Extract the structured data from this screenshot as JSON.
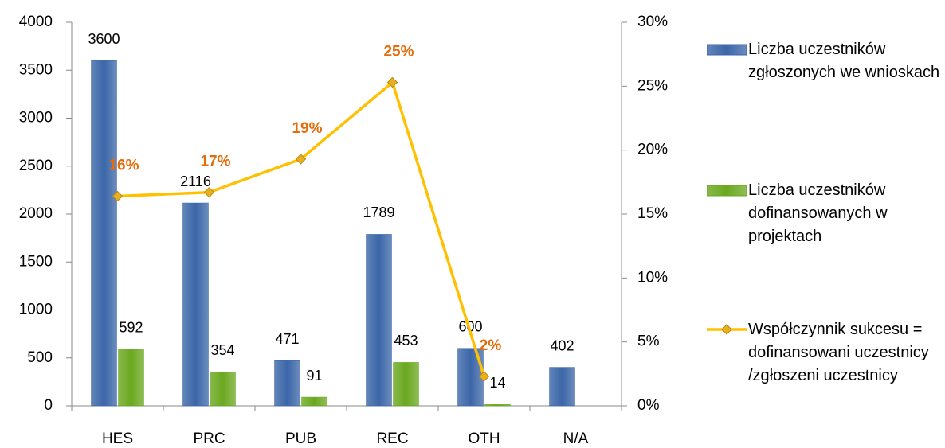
{
  "chart_data": {
    "type": "bar",
    "categories": [
      "HES",
      "PRC",
      "PUB",
      "REC",
      "OTH",
      "N/A"
    ],
    "series": [
      {
        "name": "Liczba uczestników zgłoszonych we wnioskach",
        "type": "bar",
        "color": "#3b66a8",
        "values": [
          3600,
          2116,
          471,
          1789,
          600,
          402
        ]
      },
      {
        "name": "Liczba uczestników dofinansowanych w projektach",
        "type": "bar",
        "color": "#6aa81f",
        "values": [
          592,
          354,
          91,
          453,
          14,
          null
        ]
      },
      {
        "name": "Współczynnik sukcesu = dofinansowani uczestnicy /zgłoszeni uczestnicy",
        "type": "line",
        "axis": "y2",
        "color": "#ffc000",
        "values": [
          16.4,
          16.7,
          19.3,
          25.3,
          2.3,
          null
        ],
        "value_labels": [
          "16%",
          "17%",
          "19%",
          "25%",
          "2%",
          null
        ]
      }
    ],
    "ylim": [
      0,
      4000
    ],
    "yticks": [
      0,
      500,
      1000,
      1500,
      2000,
      2500,
      3000,
      3500,
      4000
    ],
    "y2lim": [
      0,
      30
    ],
    "y2ticks": [
      {
        "value": 0,
        "label": "0%"
      },
      {
        "value": 5,
        "label": "5%"
      },
      {
        "value": 10,
        "label": "10%"
      },
      {
        "value": 15,
        "label": "15%"
      },
      {
        "value": 20,
        "label": "20%"
      },
      {
        "value": 25,
        "label": "25%"
      },
      {
        "value": 30,
        "label": "30%"
      }
    ],
    "grid": false,
    "legend": "right"
  }
}
